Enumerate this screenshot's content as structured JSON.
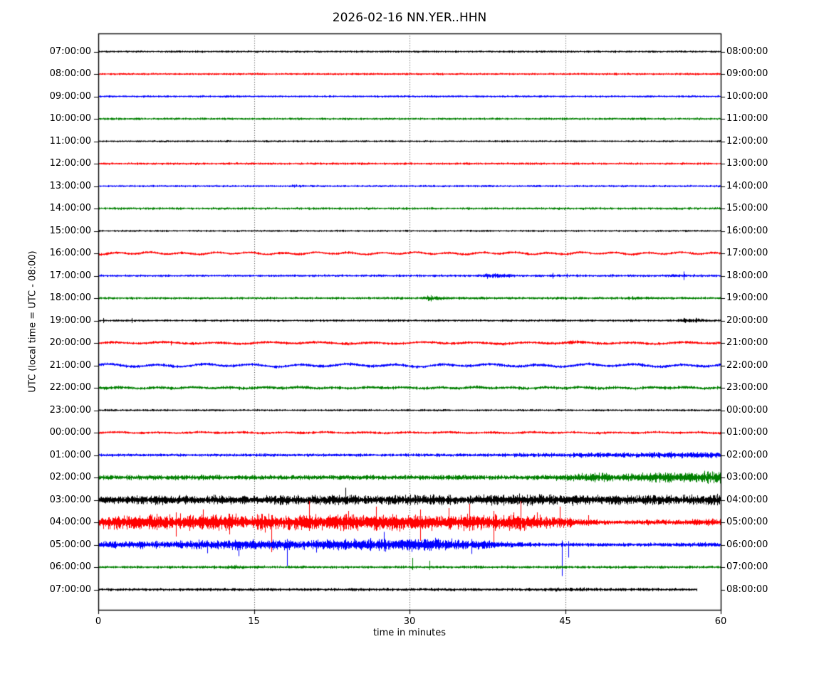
{
  "title": "2026-02-16 NN.YER..HHN",
  "axes": {
    "xlabel": "time in minutes",
    "ylabel": "UTC (local time = UTC - 08:00)",
    "x_ticks": [
      0,
      15,
      30,
      45,
      60
    ],
    "x_range": [
      0,
      60
    ],
    "grid_minutes": [
      15,
      30,
      45
    ],
    "grid_style": "dotted"
  },
  "colors": {
    "k": "#000000",
    "r": "#ff0000",
    "b": "#0000ff",
    "g": "#008000"
  },
  "chart_data": {
    "type": "line",
    "description": "helicorder day plot, 25 one-hour trace rows, color cycle black/red/blue/green",
    "row_duration_minutes": 60,
    "rows": [
      {
        "utc": "07:00:00",
        "local": "08:00:00",
        "color": "k",
        "base": 1.3
      },
      {
        "utc": "08:00:00",
        "local": "09:00:00",
        "color": "r",
        "base": 1.3
      },
      {
        "utc": "09:00:00",
        "local": "10:00:00",
        "color": "b",
        "base": 1.3
      },
      {
        "utc": "10:00:00",
        "local": "11:00:00",
        "color": "g",
        "base": 1.4
      },
      {
        "utc": "11:00:00",
        "local": "12:00:00",
        "color": "k",
        "base": 1.2
      },
      {
        "utc": "12:00:00",
        "local": "13:00:00",
        "color": "r",
        "base": 1.4
      },
      {
        "utc": "13:00:00",
        "local": "14:00:00",
        "color": "b",
        "base": 1.3,
        "envelope": [
          [
            0,
            1.3
          ],
          [
            18.5,
            1.3
          ],
          [
            19.2,
            2.2
          ],
          [
            20,
            1.3
          ],
          [
            60,
            1.3
          ]
        ]
      },
      {
        "utc": "14:00:00",
        "local": "15:00:00",
        "color": "g",
        "base": 1.5
      },
      {
        "utc": "15:00:00",
        "local": "16:00:00",
        "color": "k",
        "base": 1.2
      },
      {
        "utc": "16:00:00",
        "local": "17:00:00",
        "color": "r",
        "base": 1.5,
        "wobble": {
          "amp": 1.1,
          "period": 3.2
        }
      },
      {
        "utc": "17:00:00",
        "local": "18:00:00",
        "color": "b",
        "base": 1.4,
        "envelope": [
          [
            0,
            1.4
          ],
          [
            36.5,
            1.5
          ],
          [
            37.5,
            3.2
          ],
          [
            39,
            2.6
          ],
          [
            40.5,
            1.6
          ],
          [
            54,
            1.5
          ],
          [
            55.5,
            2.2
          ],
          [
            57,
            1.7
          ],
          [
            60,
            1.5
          ]
        ],
        "spikes": [
          [
            43.8,
            4,
            4
          ],
          [
            45.2,
            3,
            3
          ],
          [
            49.5,
            2.5,
            2.5
          ],
          [
            56.4,
            6,
            6
          ]
        ]
      },
      {
        "utc": "18:00:00",
        "local": "19:00:00",
        "color": "g",
        "base": 1.5,
        "envelope": [
          [
            0,
            1.5
          ],
          [
            31,
            1.6
          ],
          [
            31.9,
            4.2
          ],
          [
            33,
            2.6
          ],
          [
            34,
            1.7
          ],
          [
            50.5,
            1.6
          ],
          [
            51.5,
            2.6
          ],
          [
            52.5,
            1.7
          ],
          [
            60,
            1.6
          ]
        ]
      },
      {
        "utc": "19:00:00",
        "local": "20:00:00",
        "color": "k",
        "base": 1.3,
        "envelope": [
          [
            0,
            1.3
          ],
          [
            27,
            1.4
          ],
          [
            28.5,
            2.0
          ],
          [
            30,
            1.4
          ],
          [
            55.5,
            1.5
          ],
          [
            56.5,
            3.0
          ],
          [
            58,
            2.6
          ],
          [
            59,
            1.6
          ],
          [
            60,
            1.5
          ]
        ],
        "spikes": [
          [
            0.5,
            3.5,
            3.5
          ],
          [
            3.2,
            3.5,
            3.5
          ]
        ]
      },
      {
        "utc": "20:00:00",
        "local": "21:00:00",
        "color": "r",
        "base": 1.6,
        "wobble": {
          "amp": 0.9,
          "period": 5.0
        },
        "envelope": [
          [
            0,
            1.6
          ],
          [
            44,
            1.7
          ],
          [
            45.5,
            2.4
          ],
          [
            47,
            1.7
          ],
          [
            60,
            1.7
          ]
        ],
        "spikes": [
          [
            7.0,
            3,
            3.5
          ]
        ]
      },
      {
        "utc": "21:00:00",
        "local": "22:00:00",
        "color": "b",
        "base": 1.8,
        "wobble": {
          "amp": 1.4,
          "period": 4.6
        }
      },
      {
        "utc": "22:00:00",
        "local": "23:00:00",
        "color": "g",
        "base": 1.9,
        "wobble": {
          "amp": 0.6,
          "period": 3.4
        }
      },
      {
        "utc": "23:00:00",
        "local": "00:00:00",
        "color": "k",
        "base": 1.3
      },
      {
        "utc": "00:00:00",
        "local": "01:00:00",
        "color": "r",
        "base": 1.5,
        "wobble": {
          "amp": 0.5,
          "period": 4.0
        }
      },
      {
        "utc": "01:00:00",
        "local": "02:00:00",
        "color": "b",
        "base": 1.7,
        "envelope": [
          [
            0,
            1.7
          ],
          [
            36,
            1.9
          ],
          [
            40,
            2.4
          ],
          [
            44,
            2.6
          ],
          [
            47,
            3.2
          ],
          [
            50,
            3.0
          ],
          [
            53,
            3.6
          ],
          [
            56,
            3.6
          ],
          [
            58,
            4.2
          ],
          [
            60,
            4.4
          ]
        ]
      },
      {
        "utc": "02:00:00",
        "local": "03:00:00",
        "color": "g",
        "base": 2.8,
        "envelope": [
          [
            0,
            2.8
          ],
          [
            10,
            3.0
          ],
          [
            20,
            2.8
          ],
          [
            30,
            3.0
          ],
          [
            42,
            2.9
          ],
          [
            45,
            3.8
          ],
          [
            47,
            5.0
          ],
          [
            49,
            5.6
          ],
          [
            51,
            4.6
          ],
          [
            53,
            5.8
          ],
          [
            55,
            6.4
          ],
          [
            58,
            6.6
          ],
          [
            60,
            6.6
          ]
        ]
      },
      {
        "utc": "03:00:00",
        "local": "04:00:00",
        "color": "k",
        "base": 4.8,
        "envelope": [
          [
            0,
            4.6
          ],
          [
            3,
            5.2
          ],
          [
            6,
            6.0
          ],
          [
            9,
            5.2
          ],
          [
            12,
            5.6
          ],
          [
            15,
            5.0
          ],
          [
            18,
            6.0
          ],
          [
            21,
            5.4
          ],
          [
            24,
            6.2
          ],
          [
            27,
            5.2
          ],
          [
            30,
            5.6
          ],
          [
            33,
            6.2
          ],
          [
            36,
            5.4
          ],
          [
            39,
            6.4
          ],
          [
            42,
            6.8
          ],
          [
            44,
            5.6
          ],
          [
            46,
            6.2
          ],
          [
            48,
            5.4
          ],
          [
            50,
            6.0
          ],
          [
            52,
            5.2
          ],
          [
            54,
            6.2
          ],
          [
            56,
            5.6
          ],
          [
            58,
            6.2
          ],
          [
            60,
            6.0
          ]
        ],
        "spikes": [
          [
            23.8,
            17,
            7
          ],
          [
            40.6,
            9,
            5
          ],
          [
            55.2,
            7,
            5
          ]
        ]
      },
      {
        "utc": "04:00:00",
        "local": "05:00:00",
        "color": "r",
        "base": 9,
        "envelope": [
          [
            0,
            7
          ],
          [
            2,
            8
          ],
          [
            4,
            9
          ],
          [
            6,
            8.5
          ],
          [
            8,
            9.5
          ],
          [
            10,
            8.5
          ],
          [
            12,
            10
          ],
          [
            14,
            9
          ],
          [
            16,
            10.5
          ],
          [
            18,
            9
          ],
          [
            20,
            10
          ],
          [
            22,
            9
          ],
          [
            24,
            10
          ],
          [
            26,
            9
          ],
          [
            28,
            10
          ],
          [
            30,
            9.5
          ],
          [
            32,
            10
          ],
          [
            34,
            9
          ],
          [
            36,
            10
          ],
          [
            38,
            9.5
          ],
          [
            40,
            10
          ],
          [
            42,
            8.5
          ],
          [
            43.5,
            7.5
          ],
          [
            45,
            6.5
          ],
          [
            46,
            5
          ],
          [
            47,
            4
          ],
          [
            48,
            3.2
          ],
          [
            50,
            2.6
          ],
          [
            52,
            2.8
          ],
          [
            54,
            3.4
          ],
          [
            55.5,
            3.0
          ],
          [
            57,
            3.4
          ],
          [
            58,
            4.2
          ],
          [
            59,
            4.0
          ],
          [
            60,
            4.4
          ]
        ],
        "spikes": [
          [
            7.5,
            14,
            20
          ],
          [
            10.1,
            18,
            8
          ],
          [
            12.6,
            12,
            17
          ],
          [
            16.7,
            10,
            42
          ],
          [
            20.3,
            30,
            12
          ],
          [
            24.1,
            16,
            10
          ],
          [
            26.8,
            22,
            12
          ],
          [
            31.0,
            18,
            26
          ],
          [
            33.8,
            20,
            10
          ],
          [
            35.8,
            26,
            12
          ],
          [
            38.1,
            16,
            28
          ],
          [
            40.7,
            30,
            10
          ],
          [
            42.3,
            14,
            8
          ],
          [
            44.5,
            22,
            8
          ],
          [
            47.2,
            10,
            5
          ]
        ]
      },
      {
        "utc": "05:00:00",
        "local": "06:00:00",
        "color": "b",
        "base": 5,
        "envelope": [
          [
            0,
            4
          ],
          [
            2,
            4.4
          ],
          [
            4,
            4.8
          ],
          [
            6,
            4.4
          ],
          [
            8,
            4.8
          ],
          [
            10,
            5.2
          ],
          [
            12,
            6
          ],
          [
            14,
            6
          ],
          [
            16,
            5.2
          ],
          [
            18,
            6
          ],
          [
            20,
            6
          ],
          [
            22,
            6
          ],
          [
            24,
            6.4
          ],
          [
            26,
            7
          ],
          [
            28,
            7
          ],
          [
            30,
            7.6
          ],
          [
            32,
            8
          ],
          [
            34,
            7
          ],
          [
            36,
            6
          ],
          [
            37.5,
            5
          ],
          [
            39,
            3.6
          ],
          [
            41,
            2.8
          ],
          [
            43,
            2.4
          ],
          [
            46,
            2.2
          ],
          [
            50,
            2.2
          ],
          [
            54,
            2.4
          ],
          [
            58,
            2.8
          ],
          [
            60,
            3.0
          ]
        ],
        "spikes": [
          [
            10.5,
            6,
            12
          ],
          [
            13.5,
            4,
            16
          ],
          [
            18.2,
            8,
            30
          ],
          [
            21.0,
            6,
            11
          ],
          [
            27.5,
            18,
            9
          ],
          [
            36.0,
            8,
            13
          ],
          [
            44.7,
            6,
            44
          ],
          [
            45.3,
            5,
            18
          ]
        ]
      },
      {
        "utc": "06:00:00",
        "local": "07:00:00",
        "color": "g",
        "base": 1.6,
        "envelope": [
          [
            0,
            1.6
          ],
          [
            12.3,
            1.8
          ],
          [
            13.2,
            3.2
          ],
          [
            14.2,
            1.8
          ],
          [
            27,
            1.7
          ],
          [
            33,
            1.8
          ],
          [
            43,
            1.7
          ],
          [
            44.5,
            2.2
          ],
          [
            46,
            1.7
          ],
          [
            60,
            1.7
          ]
        ],
        "spikes": [
          [
            30.3,
            13,
            4
          ],
          [
            31.9,
            9,
            4
          ]
        ]
      },
      {
        "utc": "07:00:00",
        "local": "08:00:00",
        "color": "k",
        "base": 1.7,
        "end_min": 57.7,
        "envelope": [
          [
            0,
            1.7
          ],
          [
            10,
            1.9
          ],
          [
            20,
            1.7
          ],
          [
            30,
            1.9
          ],
          [
            40,
            1.7
          ],
          [
            46.5,
            2.4
          ],
          [
            48,
            2.0
          ],
          [
            55,
            1.8
          ],
          [
            57.7,
            1.6
          ]
        ]
      }
    ]
  }
}
